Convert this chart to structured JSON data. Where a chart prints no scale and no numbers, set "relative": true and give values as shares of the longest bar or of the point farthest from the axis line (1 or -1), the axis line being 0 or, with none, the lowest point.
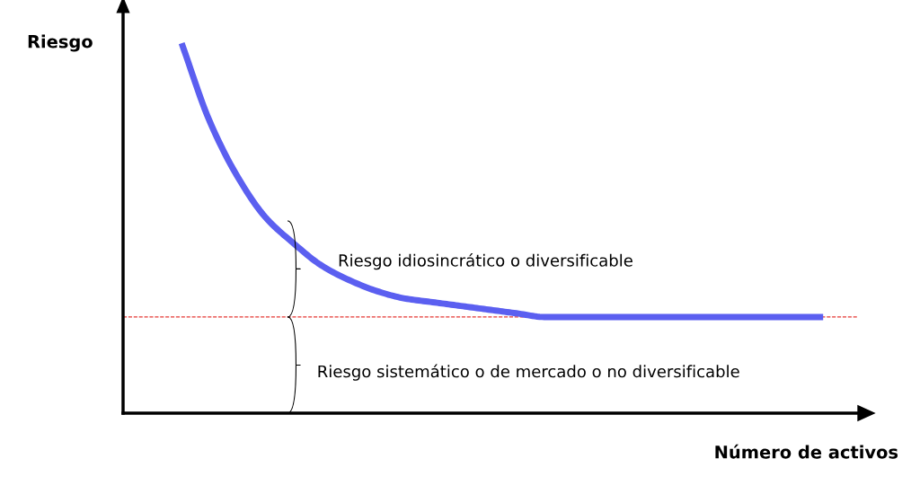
{
  "chart_data": {
    "type": "line",
    "relative": true,
    "xlabel": "Número de activos",
    "ylabel": "Riesgo",
    "categories": [
      null,
      null,
      null,
      null,
      null,
      null,
      null,
      null,
      null,
      null,
      null,
      null,
      null,
      null,
      null,
      null,
      null,
      null,
      null,
      null,
      null,
      null,
      null,
      null
    ],
    "series": [
      {
        "color": "#5b5ff0",
        "values": [
          1.0,
          0.79,
          0.64,
          0.53,
          0.46,
          0.4,
          0.36,
          0.33,
          0.31,
          0.3,
          0.29,
          0.28,
          0.27,
          0.26,
          0.26,
          0.26,
          0.26,
          0.26,
          0.26,
          0.26,
          0.26,
          0.26,
          0.26,
          0.26
        ]
      }
    ],
    "ref_lines": [
      {
        "axis": "y",
        "value": 0.26,
        "color": "#e53935",
        "line_style": "dashed"
      }
    ],
    "annotations": [
      "Riesgo idiosincrático o diversificable",
      "Riesgo sistemático o de mercado o no diversificable"
    ],
    "legend": false,
    "marker": "none",
    "line_style": "solid",
    "tick_labels": false
  }
}
